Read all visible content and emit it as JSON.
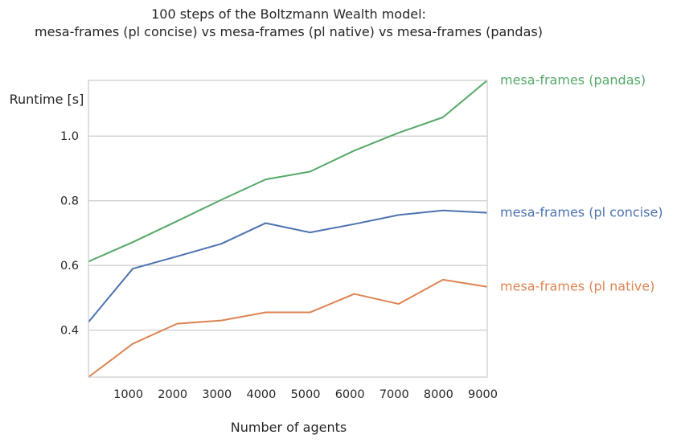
{
  "chart_data": {
    "type": "line",
    "title_lines": [
      "100 steps of the Boltzmann Wealth model:",
      "mesa-frames (pl concise) vs mesa-frames (pl native) vs mesa-frames (pandas)"
    ],
    "xlabel": "Number of agents",
    "ylabel": "Runtime [s]",
    "xlim": [
      100,
      9100
    ],
    "ylim": [
      0.255,
      1.172
    ],
    "xticks": [
      1000,
      2000,
      3000,
      4000,
      5000,
      6000,
      7000,
      8000,
      9000
    ],
    "yticks": [
      0.4,
      0.6,
      0.8,
      1.0
    ],
    "xtick_labels": [
      "1000",
      "2000",
      "3000",
      "4000",
      "5000",
      "6000",
      "7000",
      "8000",
      "9000"
    ],
    "ytick_labels": [
      "0.4",
      "0.6",
      "0.8",
      "1.0"
    ],
    "grid": "horizontal",
    "x": [
      100,
      1100,
      2100,
      3100,
      4100,
      5100,
      6100,
      7100,
      8100,
      9100
    ],
    "series": [
      {
        "name": "mesa-frames (pandas)",
        "color": "#55a868",
        "values": [
          0.612,
          0.672,
          0.737,
          0.803,
          0.866,
          0.89,
          0.955,
          1.01,
          1.058,
          1.172
        ]
      },
      {
        "name": "mesa-frames (pl concise)",
        "color": "#4c72b0",
        "values": [
          0.425,
          0.59,
          0.628,
          0.667,
          0.731,
          0.702,
          0.728,
          0.756,
          0.77,
          0.763
        ]
      },
      {
        "name": "mesa-frames (pl native)",
        "color": "#dd8452",
        "values": [
          0.255,
          0.358,
          0.42,
          0.43,
          0.455,
          0.455,
          0.512,
          0.481,
          0.556,
          0.534
        ]
      }
    ]
  }
}
